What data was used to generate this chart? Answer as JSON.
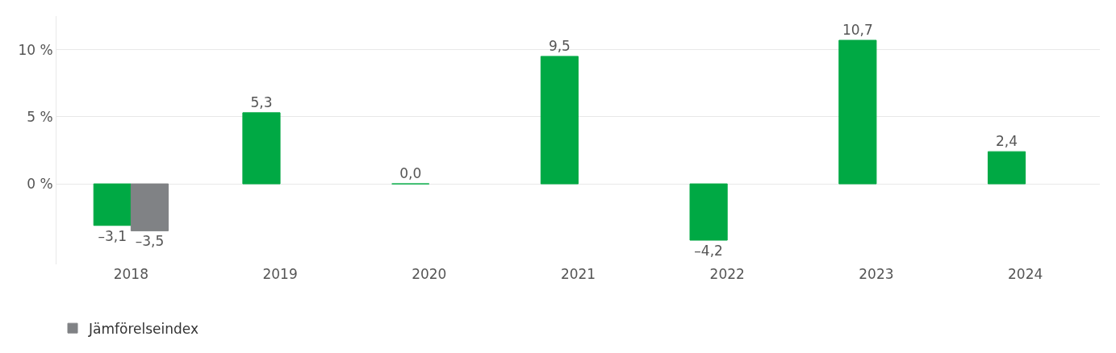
{
  "chart_data": {
    "type": "bar",
    "categories": [
      "2018",
      "2019",
      "2020",
      "2021",
      "2022",
      "2023",
      "2024"
    ],
    "series": [
      {
        "color": "#00a944",
        "values": [
          -3.1,
          5.3,
          0.0,
          9.5,
          -4.2,
          10.7,
          2.4
        ],
        "value_labels": [
          "–3,1",
          "5,3",
          "0,0",
          "9,5",
          "–4,2",
          "10,7",
          "2,4"
        ]
      },
      {
        "name": "Jämförelseindex",
        "color": "#808285",
        "values": [
          -3.5,
          null,
          null,
          null,
          null,
          null,
          null
        ],
        "value_labels": [
          "–3,5",
          null,
          null,
          null,
          null,
          null,
          null
        ]
      }
    ],
    "ylim": [
      -6,
      12.5
    ],
    "yticks": [
      {
        "value": 0,
        "label": "0 %"
      },
      {
        "value": 5,
        "label": "5 %"
      },
      {
        "value": 10,
        "label": "10 %"
      }
    ],
    "grid": "y",
    "legend": "bottom left"
  }
}
